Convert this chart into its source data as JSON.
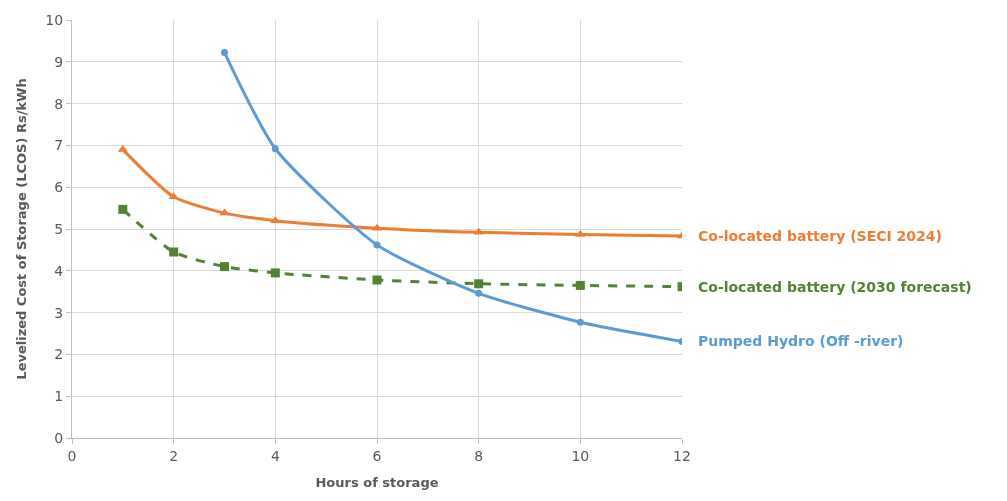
{
  "chart_data": {
    "type": "line",
    "xlabel": "Hours of storage",
    "ylabel": "Levelized Cost of Storage (LCOS) Rs/kWh",
    "xlim": [
      0,
      12
    ],
    "xticks": [
      0,
      2,
      4,
      6,
      8,
      10,
      12
    ],
    "ylim": [
      0,
      10
    ],
    "yticks": [
      0,
      1,
      2,
      3,
      4,
      5,
      6,
      7,
      8,
      9,
      10
    ],
    "grid": true,
    "legend": false,
    "series": [
      {
        "name": "Co-located battery (SECI 2024)",
        "color": "#ed7d31",
        "marker": "triangle",
        "line_style": "solid",
        "x": [
          1,
          2,
          3,
          4,
          6,
          8,
          10,
          12
        ],
        "values": [
          6.9,
          5.77,
          5.38,
          5.2,
          5.02,
          4.92,
          4.87,
          4.83
        ]
      },
      {
        "name": "Co-located battery (2030 forecast)",
        "color": "#548235",
        "marker": "square",
        "line_style": "dashed",
        "x": [
          1,
          2,
          3,
          4,
          6,
          8,
          10,
          12
        ],
        "values": [
          5.47,
          4.45,
          4.1,
          3.95,
          3.78,
          3.69,
          3.65,
          3.62
        ]
      },
      {
        "name": "Pumped Hydro (Off -river)",
        "color": "#5b9bd5",
        "marker": "circle",
        "line_style": "solid",
        "x": [
          3,
          4,
          6,
          8,
          10,
          12
        ],
        "values": [
          9.22,
          6.92,
          4.62,
          3.46,
          2.77,
          2.31
        ]
      }
    ]
  }
}
